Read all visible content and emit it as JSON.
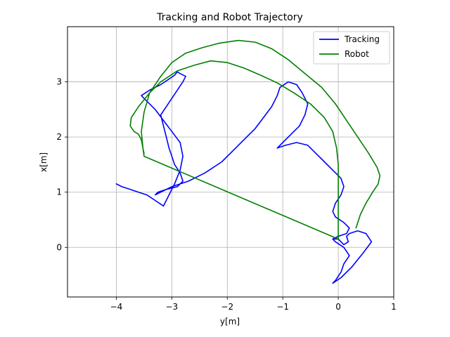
{
  "chart_data": {
    "type": "line",
    "title": "Tracking and Robot Trajectory",
    "xlabel": "y[m]",
    "ylabel": "x[m]",
    "xlim": [
      -4.88,
      1.0
    ],
    "ylim": [
      -0.9,
      4.0
    ],
    "xticks": [
      -4,
      -3,
      -2,
      -1,
      0,
      1
    ],
    "yticks": [
      0,
      1,
      2,
      3
    ],
    "xtick_labels": [
      "−4",
      "−3",
      "−2",
      "−1",
      "0",
      "1"
    ],
    "ytick_labels": [
      "0",
      "1",
      "2",
      "3"
    ],
    "grid": true,
    "legend_position": "top-right",
    "series": [
      {
        "name": "Tracking",
        "color": "#0000ff",
        "x": [
          -4.0,
          -3.9,
          -3.75,
          -3.6,
          -3.45,
          -3.3,
          -3.15,
          -3.05,
          -2.95,
          -2.85,
          -2.8,
          -2.85,
          -3.0,
          -3.15,
          -3.3,
          -3.45,
          -3.55,
          -3.4,
          -3.2,
          -3.05,
          -2.95,
          -2.9,
          -2.85,
          -2.75,
          -2.8,
          -2.9,
          -3.0,
          -3.1,
          -3.2,
          -3.15,
          -3.1,
          -3.05,
          -3.0,
          -2.95,
          -2.85,
          -2.8,
          -2.9,
          -3.1,
          -3.25,
          -3.3,
          -3.2,
          -3.0,
          -2.7,
          -2.4,
          -2.1,
          -1.9,
          -1.7,
          -1.5,
          -1.35,
          -1.2,
          -1.1,
          -1.05,
          -0.9,
          -0.75,
          -0.65,
          -0.55,
          -0.6,
          -0.7,
          -0.85,
          -1.0,
          -1.1,
          -0.95,
          -0.75,
          -0.55,
          -0.4,
          -0.25,
          -0.1,
          0.0,
          0.05,
          0.1,
          0.05,
          -0.05,
          -0.1,
          -0.05,
          0.1,
          0.2,
          0.15,
          0.0,
          -0.1,
          -0.05,
          0.1,
          0.2,
          0.1,
          0.05,
          -0.05,
          -0.1,
          0.05,
          0.25,
          0.45,
          0.6,
          0.5,
          0.35,
          0.2,
          0.15,
          0.18,
          0.1,
          0.05,
          0.0,
          -0.1
        ],
        "y": [
          1.15,
          1.1,
          1.05,
          1.0,
          0.95,
          0.85,
          0.75,
          0.95,
          1.15,
          1.4,
          1.65,
          1.9,
          2.1,
          2.3,
          2.5,
          2.65,
          2.75,
          2.85,
          2.95,
          3.05,
          3.12,
          3.18,
          3.15,
          3.1,
          3.0,
          2.85,
          2.7,
          2.55,
          2.4,
          2.2,
          2.0,
          1.8,
          1.65,
          1.5,
          1.35,
          1.2,
          1.1,
          1.05,
          1.0,
          0.95,
          1.0,
          1.1,
          1.2,
          1.35,
          1.55,
          1.75,
          1.95,
          2.15,
          2.35,
          2.55,
          2.75,
          2.9,
          3.0,
          2.95,
          2.8,
          2.6,
          2.4,
          2.2,
          2.05,
          1.9,
          1.8,
          1.85,
          1.9,
          1.85,
          1.7,
          1.55,
          1.4,
          1.3,
          1.25,
          1.1,
          0.95,
          0.8,
          0.65,
          0.55,
          0.45,
          0.35,
          0.25,
          0.2,
          0.15,
          0.1,
          0.0,
          -0.15,
          -0.3,
          -0.45,
          -0.6,
          -0.65,
          -0.55,
          -0.35,
          -0.1,
          0.1,
          0.25,
          0.3,
          0.25,
          0.2,
          0.1,
          0.05,
          0.1,
          0.15,
          0.15
        ]
      },
      {
        "name": "Robot",
        "color": "#008000",
        "x": [
          -3.5,
          -3.52,
          -3.55,
          -3.6,
          -3.68,
          -3.75,
          -3.73,
          -3.6,
          -3.4,
          -3.2,
          -2.9,
          -2.6,
          -2.3,
          -2.0,
          -1.7,
          -1.4,
          -1.1,
          -0.8,
          -0.5,
          -0.25,
          -0.1,
          -0.03,
          0.0,
          0.0,
          0.0,
          0.0,
          0.0,
          0.0,
          -0.0,
          -3.5,
          -3.52,
          -3.55,
          -3.5,
          -3.4,
          -3.2,
          -3.0,
          -2.75,
          -2.45,
          -2.15,
          -1.8,
          -1.5,
          -1.2,
          -0.9,
          -0.6,
          -0.3,
          -0.05,
          0.15,
          0.35,
          0.55,
          0.7,
          0.75,
          0.72,
          0.62,
          0.5,
          0.4,
          0.32
        ],
        "y": [
          1.7,
          1.8,
          1.95,
          2.05,
          2.1,
          2.2,
          2.35,
          2.55,
          2.8,
          3.0,
          3.2,
          3.3,
          3.38,
          3.35,
          3.25,
          3.12,
          2.98,
          2.8,
          2.6,
          2.35,
          2.1,
          1.8,
          1.5,
          1.2,
          0.9,
          0.6,
          0.35,
          0.2,
          0.15,
          1.65,
          1.8,
          2.1,
          2.45,
          2.8,
          3.1,
          3.35,
          3.52,
          3.62,
          3.7,
          3.75,
          3.72,
          3.6,
          3.4,
          3.15,
          2.9,
          2.6,
          2.3,
          2.0,
          1.7,
          1.45,
          1.3,
          1.15,
          1.0,
          0.8,
          0.6,
          0.35
        ]
      }
    ]
  }
}
